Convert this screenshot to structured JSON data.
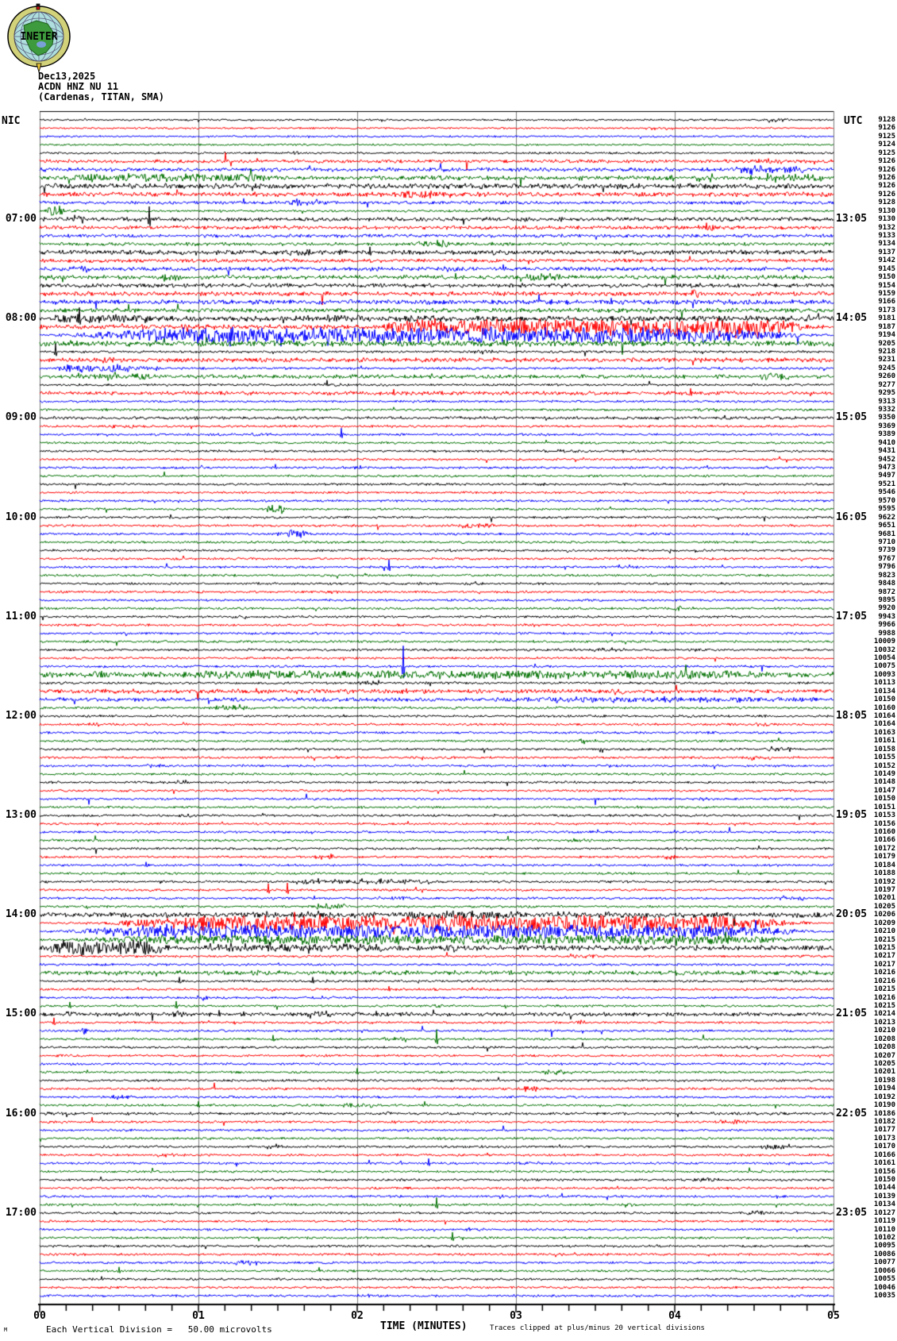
{
  "header": {
    "date": "Dec13,2025",
    "station": "ACDN HNZ NU 11",
    "location": "(Cardenas, TITAN, SMA)",
    "logo_text": "INETER"
  },
  "side_labels": {
    "left": "NIC",
    "right": "UTC"
  },
  "footer": {
    "scale_glyph": "M",
    "scale_note": "Each Vertical Division =   50.00 microvolts",
    "xaxis_title": "TIME (MINUTES)",
    "clip_note": "Traces clipped at plus/minus 20 vertical divisions"
  },
  "chart_data": {
    "type": "line",
    "title": "ACDN HNZ NU 11 (Cardenas, TITAN, SMA) helicorder, Dec13,2025",
    "xlabel": "TIME (MINUTES)",
    "x_ticks": [
      "00",
      "01",
      "02",
      "03",
      "04",
      "05"
    ],
    "x_range": [
      0,
      5
    ],
    "minutes_per_trace": 5,
    "trace_count": 143,
    "rows_per_hour": 12,
    "hour_label_first_row": 12,
    "grid": true,
    "color_cycle": [
      "#000000",
      "#ff0000",
      "#0000ff",
      "#007000"
    ],
    "grid_color": "#7a7a7a",
    "left_hour_labels": [
      "07:00",
      "08:00",
      "09:00",
      "10:00",
      "11:00",
      "12:00",
      "13:00",
      "14:00",
      "15:00",
      "16:00",
      "17:00"
    ],
    "right_hour_labels": [
      "13:05",
      "14:05",
      "15:05",
      "16:05",
      "17:05",
      "18:05",
      "19:05",
      "20:05",
      "21:05",
      "22:05",
      "23:05"
    ],
    "right_column_values": [
      9128,
      9126,
      9125,
      9124,
      9125,
      9126,
      9126,
      9126,
      9126,
      9126,
      9128,
      9130,
      9130,
      9132,
      9133,
      9134,
      9137,
      9142,
      9145,
      9150,
      9154,
      9159,
      9166,
      9173,
      9181,
      9187,
      9194,
      9205,
      9218,
      9231,
      9245,
      9260,
      9277,
      9295,
      9313,
      9332,
      9350,
      9369,
      9389,
      9410,
      9431,
      9452,
      9473,
      9497,
      9521,
      9546,
      9570,
      9595,
      9622,
      9651,
      9681,
      9710,
      9739,
      9767,
      9796,
      9823,
      9848,
      9872,
      9895,
      9920,
      9943,
      9966,
      9988,
      10009,
      10032,
      10054,
      10075,
      10093,
      10113,
      10134,
      10150,
      10160,
      10164,
      10164,
      10163,
      10161,
      10158,
      10155,
      10152,
      10149,
      10148,
      10147,
      10150,
      10151,
      10153,
      10156,
      10160,
      10166,
      10172,
      10179,
      10184,
      10188,
      10192,
      10197,
      10201,
      10205,
      10206,
      10209,
      10210,
      10215,
      10215,
      10217,
      10217,
      10216,
      10216,
      10215,
      10216,
      10215,
      10214,
      10213,
      10210,
      10208,
      10208,
      10207,
      10205,
      10201,
      10198,
      10194,
      10192,
      10190,
      10186,
      10182,
      10177,
      10173,
      10170,
      10166,
      10161,
      10156,
      10150,
      10144,
      10139,
      10134,
      10127,
      10119,
      10110,
      10102,
      10095,
      10086,
      10077,
      10066,
      10055,
      10046,
      10035
    ],
    "noise_levels": {
      "0": 0.9,
      "1": 0.9,
      "2": 0.9,
      "3": 0.9,
      "4": 1.0,
      "5": 1.6,
      "6": 1.8,
      "7": 1.9,
      "8": 2.4,
      "9": 2.1,
      "10": 1.5,
      "12": 1.9,
      "13": 1.7,
      "14": 1.5,
      "15": 1.5,
      "16": 2.1,
      "17": 1.7,
      "18": 1.8,
      "19": 1.9,
      "20": 1.9,
      "21": 2.0,
      "22": 2.2,
      "23": 2.0,
      "24": 2.4,
      "25": 2.2,
      "27": 2.6,
      "29": 2.0,
      "31": 1.8,
      "33": 1.7,
      "36": 1.4,
      "67": 2.4,
      "69": 1.8,
      "70": 1.8,
      "96": 2.3,
      "100": 2.4,
      "103": 2.0,
      "108": 1.8,
      "120": 1.3
    },
    "events": [
      [
        6,
        4.35,
        4.85,
        5
      ],
      [
        7,
        0,
        1.6,
        6
      ],
      [
        7,
        1.6,
        5,
        2.5
      ],
      [
        7,
        4.5,
        5,
        4.5
      ],
      [
        8,
        0,
        1.6,
        3
      ],
      [
        11,
        0.03,
        0.16,
        7
      ],
      [
        12,
        0.2,
        0.3,
        5
      ],
      [
        15,
        2.35,
        2.6,
        5
      ],
      [
        16,
        0,
        2.6,
        2.8
      ],
      [
        19,
        0.75,
        0.9,
        5
      ],
      [
        24,
        0,
        0.8,
        6
      ],
      [
        24,
        1.4,
        2.9,
        3.5
      ],
      [
        25,
        1.95,
        5,
        12
      ],
      [
        26,
        0,
        5,
        11
      ],
      [
        30,
        0.08,
        0.65,
        6
      ],
      [
        31,
        0.1,
        0.8,
        4
      ],
      [
        47,
        1.42,
        1.55,
        7
      ],
      [
        50,
        1.55,
        1.7,
        6
      ],
      [
        67,
        0.45,
        5,
        6
      ],
      [
        69,
        0,
        2.9,
        2.6
      ],
      [
        70,
        2.8,
        5,
        3.2
      ],
      [
        92,
        1.5,
        2.6,
        3
      ],
      [
        95,
        1.7,
        1.95,
        4
      ],
      [
        96,
        0,
        5,
        3.2
      ],
      [
        96,
        2.2,
        3.1,
        6
      ],
      [
        97,
        0.25,
        5,
        11
      ],
      [
        98,
        0,
        5,
        10
      ],
      [
        99,
        0,
        5,
        7
      ],
      [
        100,
        0,
        0.85,
        11
      ],
      [
        100,
        0.85,
        2.35,
        5
      ],
      [
        100,
        2.35,
        5,
        2.5
      ],
      [
        103,
        0,
        5,
        2.6
      ],
      [
        108,
        0.16,
        0.22,
        6
      ],
      [
        108,
        0.83,
        0.92,
        6
      ],
      [
        108,
        1.65,
        1.85,
        5
      ],
      [
        110,
        0.25,
        0.3,
        7
      ]
    ],
    "spikes": [
      [
        12,
        0.69,
        16
      ],
      [
        13,
        4.2,
        6
      ],
      [
        16,
        2.08,
        7
      ],
      [
        19,
        2.62,
        5
      ],
      [
        22,
        3.6,
        5
      ],
      [
        24,
        0.25,
        14
      ],
      [
        28,
        0.1,
        10
      ],
      [
        33,
        2.23,
        5
      ],
      [
        33,
        4.1,
        6
      ],
      [
        38,
        1.9,
        8
      ],
      [
        54,
        2.2,
        9
      ],
      [
        66,
        2.29,
        26
      ],
      [
        90,
        0.67,
        4
      ],
      [
        93,
        1.44,
        8
      ],
      [
        93,
        1.56,
        9
      ],
      [
        104,
        0.88,
        5
      ],
      [
        104,
        1.72,
        5
      ],
      [
        105,
        2.2,
        4
      ],
      [
        107,
        0.19,
        5
      ],
      [
        107,
        0.86,
        6
      ],
      [
        108,
        1.13,
        5
      ],
      [
        108,
        2.12,
        4
      ],
      [
        109,
        0.09,
        6
      ],
      [
        111,
        1.47,
        5
      ],
      [
        111,
        2.5,
        12
      ],
      [
        115,
        2.0,
        5
      ],
      [
        119,
        1.0,
        5
      ],
      [
        126,
        2.45,
        6
      ],
      [
        131,
        2.5,
        9
      ],
      [
        135,
        2.6,
        7
      ],
      [
        139,
        0.5,
        5
      ]
    ]
  }
}
